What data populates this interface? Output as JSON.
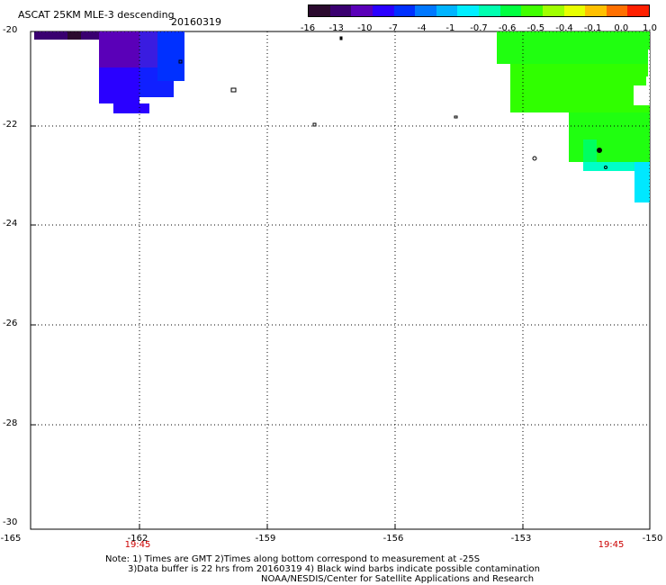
{
  "header": {
    "title": "ASCAT 25KM MLE-3 descending",
    "date": "20160319"
  },
  "colorbar": {
    "colors": [
      "#2b0a2e",
      "#3a0070",
      "#5a00b8",
      "#2a00ff",
      "#0030ff",
      "#0078ff",
      "#00b4ff",
      "#00eeff",
      "#00ffb0",
      "#00ff40",
      "#40ff00",
      "#a0ff00",
      "#e8ff00",
      "#ffc000",
      "#ff7000",
      "#ff2000"
    ],
    "labels": [
      "-16",
      "-13",
      "-10",
      "-7",
      "-4",
      "-1",
      "-0.7",
      "-0.6",
      "-0.5",
      "-0.4",
      "-0.1",
      "0.0",
      "1.0"
    ]
  },
  "axes": {
    "lat_labels": [
      "-20",
      "-22",
      "-24",
      "-26",
      "-28",
      "-30"
    ],
    "lon_labels": [
      "-165",
      "-162",
      "-159",
      "-156",
      "-153",
      "-150"
    ],
    "time_labels": [
      "19:45",
      "19:45"
    ]
  },
  "notes": {
    "line1": "Note: 1) Times are GMT 2)Times along bottom correspond to measurement at -25S",
    "line2": "3)Data buffer is 22 hrs from 20160319 4) Black wind barbs indicate possible contamination",
    "line3": "NOAA/NESDIS/Center for Satellite Applications and Research"
  }
}
